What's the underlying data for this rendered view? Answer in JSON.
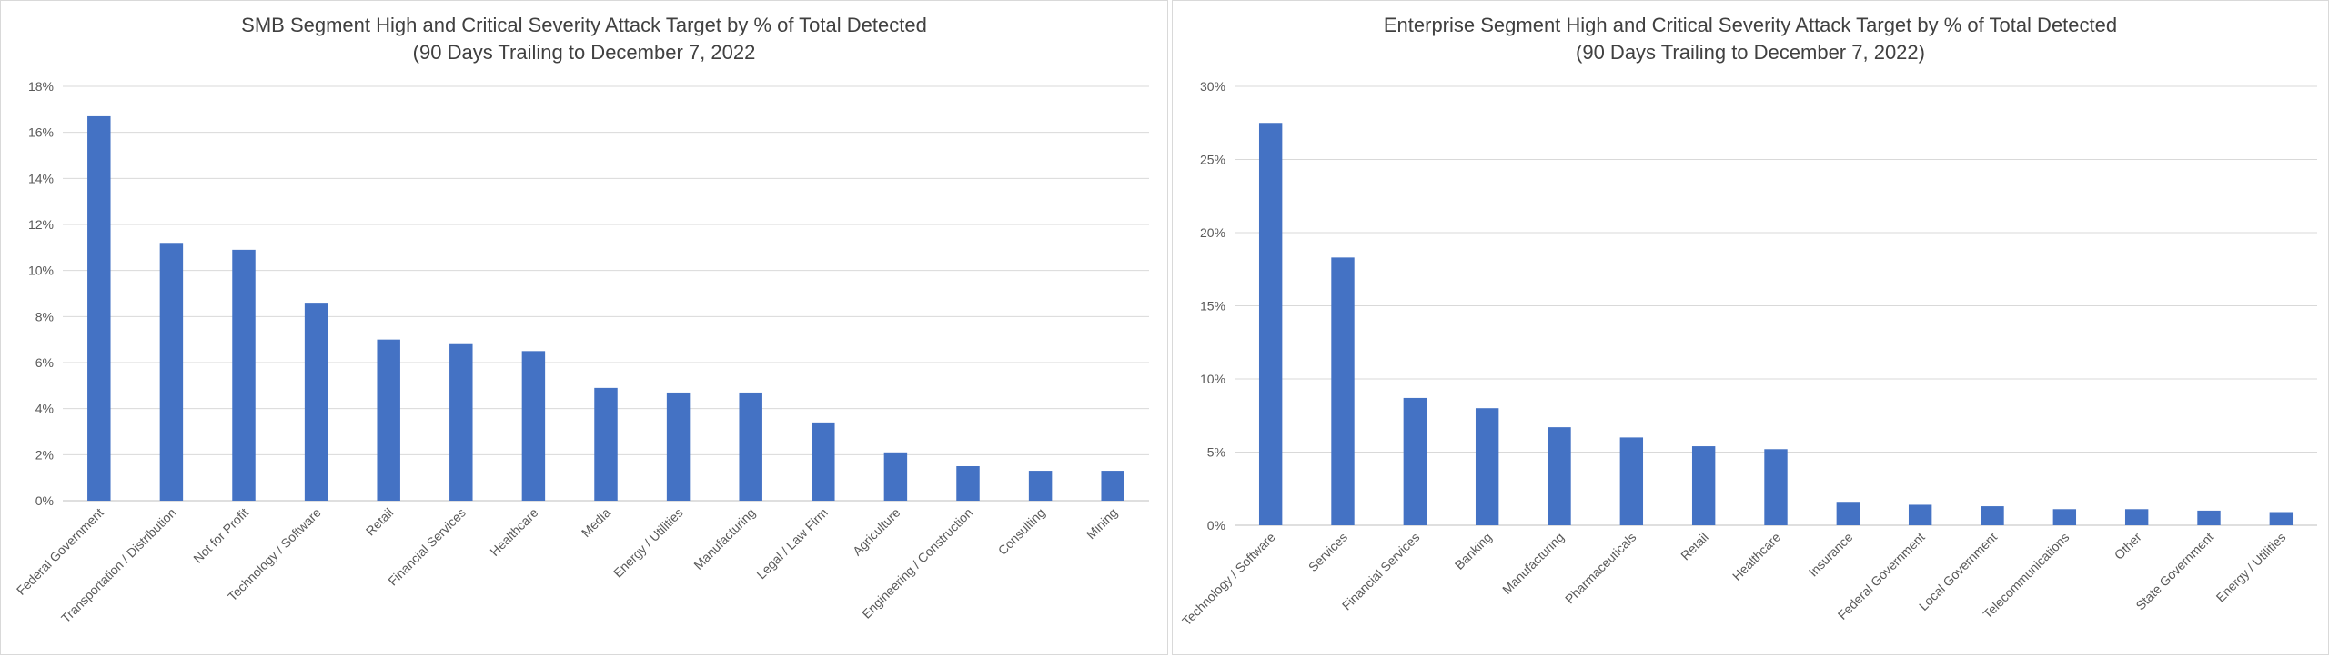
{
  "chart_data": [
    {
      "type": "bar",
      "title": "SMB Segment High and Critical Severity Attack Target by % of Total Detected",
      "subtitle": "(90 Days Trailing to December 7, 2022",
      "categories": [
        "Federal Government",
        "Transportation / Distribution",
        "Not for Profit",
        "Technology / Software",
        "Retail",
        "Financial Services",
        "Healthcare",
        "Media",
        "Energy / Utilities",
        "Manufacturing",
        "Legal / Law Firm",
        "Agriculture",
        "Engineering / Construction",
        "Consulting",
        "Mining"
      ],
      "values": [
        16.7,
        11.2,
        10.9,
        8.6,
        7.0,
        6.8,
        6.5,
        4.9,
        4.7,
        4.7,
        3.4,
        2.1,
        1.5,
        1.3,
        1.3
      ],
      "yticks": [
        "0%",
        "2%",
        "4%",
        "6%",
        "8%",
        "10%",
        "12%",
        "14%",
        "16%",
        "18%"
      ],
      "ylim": [
        0,
        18
      ],
      "xlabel": "",
      "ylabel": "",
      "grid": true,
      "color": "#4472c4"
    },
    {
      "type": "bar",
      "title": "Enterprise Segment High and Critical Severity Attack Target by % of Total Detected",
      "subtitle": "(90 Days Trailing to December 7, 2022)",
      "categories": [
        "Technology / Software",
        "Services",
        "Financial Services",
        "Banking",
        "Manufacturing",
        "Pharmaceuticals",
        "Retail",
        "Healthcare",
        "Insurance",
        "Federal Government",
        "Local Government",
        "Telecommunications",
        "Other",
        "State Government",
        "Energy / Utilities"
      ],
      "values": [
        27.5,
        18.3,
        8.7,
        8.0,
        6.7,
        6.0,
        5.4,
        5.2,
        1.6,
        1.4,
        1.3,
        1.1,
        1.1,
        1.0,
        0.9
      ],
      "yticks": [
        "0%",
        "5%",
        "10%",
        "15%",
        "20%",
        "25%",
        "30%"
      ],
      "ylim": [
        0,
        30
      ],
      "xlabel": "",
      "ylabel": "",
      "grid": true,
      "color": "#4472c4"
    }
  ]
}
